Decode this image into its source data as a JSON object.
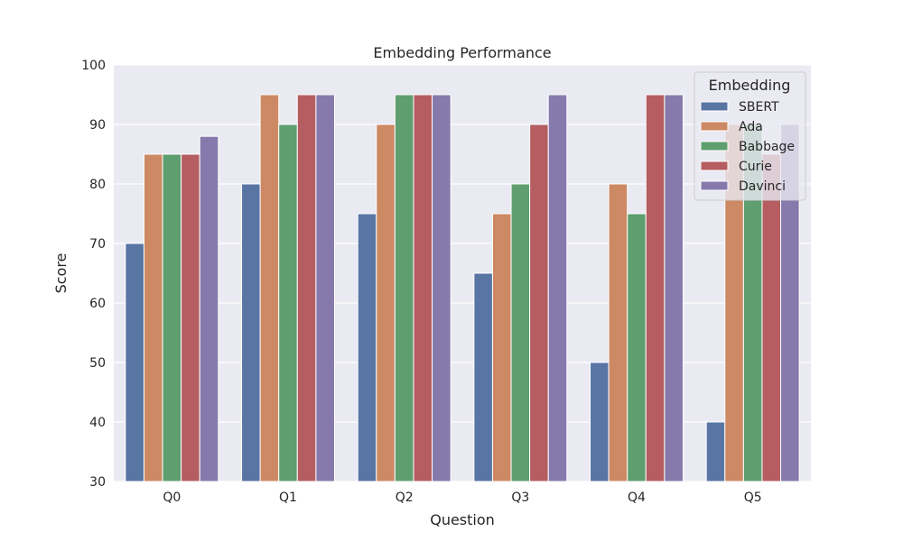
{
  "chart_data": {
    "type": "bar",
    "title": "Embedding Performance",
    "xlabel": "Question",
    "ylabel": "Score",
    "categories": [
      "Q0",
      "Q1",
      "Q2",
      "Q3",
      "Q4",
      "Q5"
    ],
    "ylim": [
      30,
      100
    ],
    "yticks": [
      30,
      40,
      50,
      60,
      70,
      80,
      90,
      100
    ],
    "grid": true,
    "legend": {
      "title": "Embedding",
      "placement": "top-right"
    },
    "series": [
      {
        "name": "SBERT",
        "color": "#5975a4",
        "values": [
          70,
          80,
          75,
          65,
          50,
          40
        ]
      },
      {
        "name": "Ada",
        "color": "#cc8963",
        "values": [
          85,
          95,
          90,
          75,
          80,
          90
        ]
      },
      {
        "name": "Babbage",
        "color": "#5f9e6e",
        "values": [
          85,
          90,
          95,
          80,
          75,
          90
        ]
      },
      {
        "name": "Curie",
        "color": "#b55d60",
        "values": [
          85,
          95,
          95,
          90,
          95,
          85
        ]
      },
      {
        "name": "Davinci",
        "color": "#857aab",
        "values": [
          88,
          95,
          95,
          95,
          95,
          90
        ]
      }
    ]
  }
}
